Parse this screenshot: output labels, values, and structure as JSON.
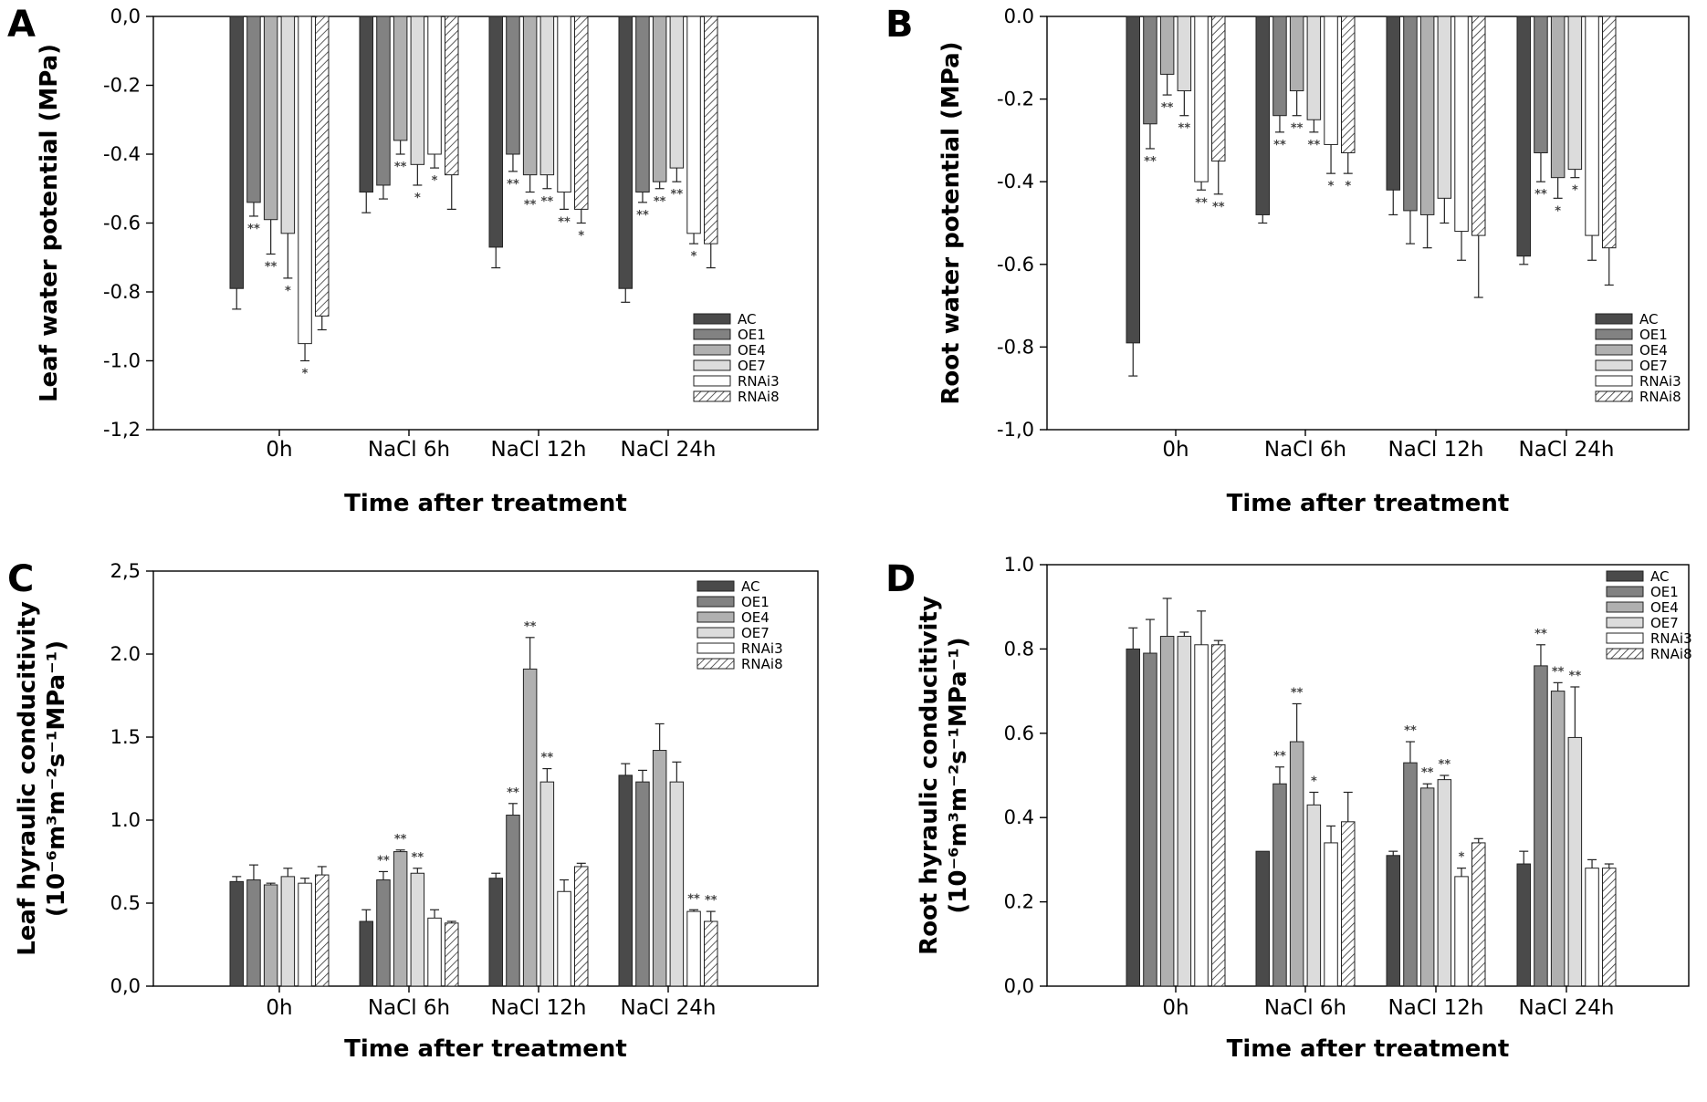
{
  "figure": {
    "series_styles": [
      {
        "name": "AC",
        "fill": "#4a4a4a",
        "hatch": false
      },
      {
        "name": "OE1",
        "fill": "#828282",
        "hatch": false
      },
      {
        "name": "OE4",
        "fill": "#b0b0b0",
        "hatch": false
      },
      {
        "name": "OE7",
        "fill": "#dcdcdc",
        "hatch": false
      },
      {
        "name": "RNAi3",
        "fill": "#ffffff",
        "hatch": false
      },
      {
        "name": "RNAi8",
        "fill": "#ffffff",
        "hatch": true
      }
    ]
  },
  "chart_data": [
    {
      "panel": "A",
      "type": "bar",
      "title": "",
      "xlabel": "Time after treatment",
      "ylabel": "Leaf water potential (MPa)",
      "ylabel_line2": "",
      "ylim": [
        -1.2,
        0.0
      ],
      "yticks": [
        0.0,
        -0.2,
        -0.4,
        -0.6,
        -0.8,
        -1.0,
        -1.2
      ],
      "ytick_labels": [
        "0,0",
        "-0.2",
        "-0.4",
        "-0.6",
        "-0.8",
        "-1.0",
        "-1,2"
      ],
      "legend_position": "bottom-right",
      "categories": [
        "0h",
        "NaCl 6h",
        "NaCl 12h",
        "NaCl 24h"
      ],
      "series": [
        {
          "name": "AC",
          "values": [
            -0.79,
            -0.51,
            -0.67,
            -0.79
          ],
          "errors": [
            0.06,
            0.06,
            0.06,
            0.04
          ],
          "sig": [
            "",
            "",
            "",
            ""
          ]
        },
        {
          "name": "OE1",
          "values": [
            -0.54,
            -0.49,
            -0.4,
            -0.51
          ],
          "errors": [
            0.04,
            0.04,
            0.05,
            0.03
          ],
          "sig": [
            "**",
            "",
            "**",
            "**"
          ]
        },
        {
          "name": "OE4",
          "values": [
            -0.59,
            -0.36,
            -0.46,
            -0.48
          ],
          "errors": [
            0.1,
            0.04,
            0.05,
            0.02
          ],
          "sig": [
            "**",
            "**",
            "**",
            "**"
          ]
        },
        {
          "name": "OE7",
          "values": [
            -0.63,
            -0.43,
            -0.46,
            -0.44
          ],
          "errors": [
            0.13,
            0.06,
            0.04,
            0.04
          ],
          "sig": [
            "*",
            "*",
            "**",
            "**"
          ]
        },
        {
          "name": "RNAi3",
          "values": [
            -0.95,
            -0.4,
            -0.51,
            -0.63
          ],
          "errors": [
            0.05,
            0.04,
            0.05,
            0.03
          ],
          "sig": [
            "*",
            "*",
            "**",
            "*"
          ]
        },
        {
          "name": "RNAi8",
          "values": [
            -0.87,
            -0.46,
            -0.56,
            -0.66
          ],
          "errors": [
            0.04,
            0.1,
            0.04,
            0.07
          ],
          "sig": [
            "",
            "",
            "*",
            ""
          ]
        }
      ]
    },
    {
      "panel": "B",
      "type": "bar",
      "title": "",
      "xlabel": "Time after treatment",
      "ylabel": "Root water potential (MPa)",
      "ylabel_line2": "",
      "ylim": [
        -1.0,
        0.0
      ],
      "yticks": [
        0.0,
        -0.2,
        -0.4,
        -0.6,
        -0.8,
        -1.0
      ],
      "ytick_labels": [
        "0.0",
        "-0.2",
        "-0.4",
        "-0.6",
        "-0.8",
        "-1,0"
      ],
      "legend_position": "bottom-right",
      "categories": [
        "0h",
        "NaCl 6h",
        "NaCl 12h",
        "NaCl 24h"
      ],
      "series": [
        {
          "name": "AC",
          "values": [
            -0.79,
            -0.48,
            -0.42,
            -0.58
          ],
          "errors": [
            0.08,
            0.02,
            0.06,
            0.02
          ],
          "sig": [
            "",
            "",
            "",
            ""
          ]
        },
        {
          "name": "OE1",
          "values": [
            -0.26,
            -0.24,
            -0.47,
            -0.33
          ],
          "errors": [
            0.06,
            0.04,
            0.08,
            0.07
          ],
          "sig": [
            "**",
            "**",
            "",
            "**"
          ]
        },
        {
          "name": "OE4",
          "values": [
            -0.14,
            -0.18,
            -0.48,
            -0.39
          ],
          "errors": [
            0.05,
            0.06,
            0.08,
            0.05
          ],
          "sig": [
            "**",
            "**",
            "",
            "*"
          ]
        },
        {
          "name": "OE7",
          "values": [
            -0.18,
            -0.25,
            -0.44,
            -0.37
          ],
          "errors": [
            0.06,
            0.03,
            0.06,
            0.02
          ],
          "sig": [
            "**",
            "**",
            "",
            "*"
          ]
        },
        {
          "name": "RNAi3",
          "values": [
            -0.4,
            -0.31,
            -0.52,
            -0.53
          ],
          "errors": [
            0.02,
            0.07,
            0.07,
            0.06
          ],
          "sig": [
            "**",
            "*",
            "",
            ""
          ]
        },
        {
          "name": "RNAi8",
          "values": [
            -0.35,
            -0.33,
            -0.53,
            -0.56
          ],
          "errors": [
            0.08,
            0.05,
            0.15,
            0.09
          ],
          "sig": [
            "**",
            "*",
            "",
            ""
          ]
        }
      ]
    },
    {
      "panel": "C",
      "type": "bar",
      "title": "",
      "xlabel": "Time after treatment",
      "ylabel": "Leaf hyraulic conducitivity",
      "ylabel_line2": "(10⁻⁶m³m⁻²s⁻¹MPa⁻¹)",
      "ylim": [
        0.0,
        2.5
      ],
      "yticks": [
        0.0,
        0.5,
        1.0,
        1.5,
        2.0,
        2.5
      ],
      "ytick_labels": [
        "0,0",
        "0.5",
        "1.0",
        "1.5",
        "2.0",
        "2,5"
      ],
      "legend_position": "top-right",
      "categories": [
        "0h",
        "NaCl 6h",
        "NaCl 12h",
        "NaCl 24h"
      ],
      "series": [
        {
          "name": "AC",
          "values": [
            0.63,
            0.39,
            0.65,
            1.27
          ],
          "errors": [
            0.03,
            0.07,
            0.03,
            0.07
          ],
          "sig": [
            "",
            "",
            "",
            ""
          ]
        },
        {
          "name": "OE1",
          "values": [
            0.64,
            0.64,
            1.03,
            1.23
          ],
          "errors": [
            0.09,
            0.05,
            0.07,
            0.07
          ],
          "sig": [
            "",
            "**",
            "**",
            ""
          ]
        },
        {
          "name": "OE4",
          "values": [
            0.61,
            0.81,
            1.91,
            1.42
          ],
          "errors": [
            0.01,
            0.01,
            0.19,
            0.16
          ],
          "sig": [
            "",
            "**",
            "**",
            ""
          ]
        },
        {
          "name": "OE7",
          "values": [
            0.66,
            0.68,
            1.23,
            1.23
          ],
          "errors": [
            0.05,
            0.03,
            0.08,
            0.12
          ],
          "sig": [
            "",
            "**",
            "**",
            ""
          ]
        },
        {
          "name": "RNAi3",
          "values": [
            0.62,
            0.41,
            0.57,
            0.45
          ],
          "errors": [
            0.03,
            0.05,
            0.07,
            0.01
          ],
          "sig": [
            "",
            "",
            "",
            "**"
          ]
        },
        {
          "name": "RNAi8",
          "values": [
            0.67,
            0.38,
            0.72,
            0.39
          ],
          "errors": [
            0.05,
            0.01,
            0.02,
            0.06
          ],
          "sig": [
            "",
            "",
            "",
            "**"
          ]
        }
      ]
    },
    {
      "panel": "D",
      "type": "bar",
      "title": "",
      "xlabel": "Time after treatment",
      "ylabel": "Root hyraulic conducitivity",
      "ylabel_line2": "(10⁻⁶m³m⁻²s⁻¹MPa⁻¹)",
      "ylim": [
        0.0,
        1.0
      ],
      "yticks": [
        0.0,
        0.2,
        0.4,
        0.6,
        0.8,
        1.0
      ],
      "ytick_labels": [
        "0,0",
        "0.2",
        "0.4",
        "0.6",
        "0.8",
        "1.0"
      ],
      "legend_position": "top-right",
      "categories": [
        "0h",
        "NaCl 6h",
        "NaCl 12h",
        "NaCl 24h"
      ],
      "series": [
        {
          "name": "AC",
          "values": [
            0.8,
            0.32,
            0.31,
            0.29
          ],
          "errors": [
            0.05,
            0.0,
            0.01,
            0.03
          ],
          "sig": [
            "",
            "",
            "",
            ""
          ]
        },
        {
          "name": "OE1",
          "values": [
            0.79,
            0.48,
            0.53,
            0.76
          ],
          "errors": [
            0.08,
            0.04,
            0.05,
            0.05
          ],
          "sig": [
            "",
            "**",
            "**",
            "**"
          ]
        },
        {
          "name": "OE4",
          "values": [
            0.83,
            0.58,
            0.47,
            0.7
          ],
          "errors": [
            0.09,
            0.09,
            0.01,
            0.02
          ],
          "sig": [
            "",
            "**",
            "**",
            "**"
          ]
        },
        {
          "name": "OE7",
          "values": [
            0.83,
            0.43,
            0.49,
            0.59
          ],
          "errors": [
            0.01,
            0.03,
            0.01,
            0.12
          ],
          "sig": [
            "",
            "*",
            "**",
            "**"
          ]
        },
        {
          "name": "RNAi3",
          "values": [
            0.81,
            0.34,
            0.26,
            0.28
          ],
          "errors": [
            0.08,
            0.04,
            0.02,
            0.02
          ],
          "sig": [
            "",
            "",
            "*",
            ""
          ]
        },
        {
          "name": "RNAi8",
          "values": [
            0.81,
            0.39,
            0.34,
            0.28
          ],
          "errors": [
            0.01,
            0.07,
            0.01,
            0.01
          ],
          "sig": [
            "",
            "",
            "",
            ""
          ]
        }
      ]
    }
  ]
}
